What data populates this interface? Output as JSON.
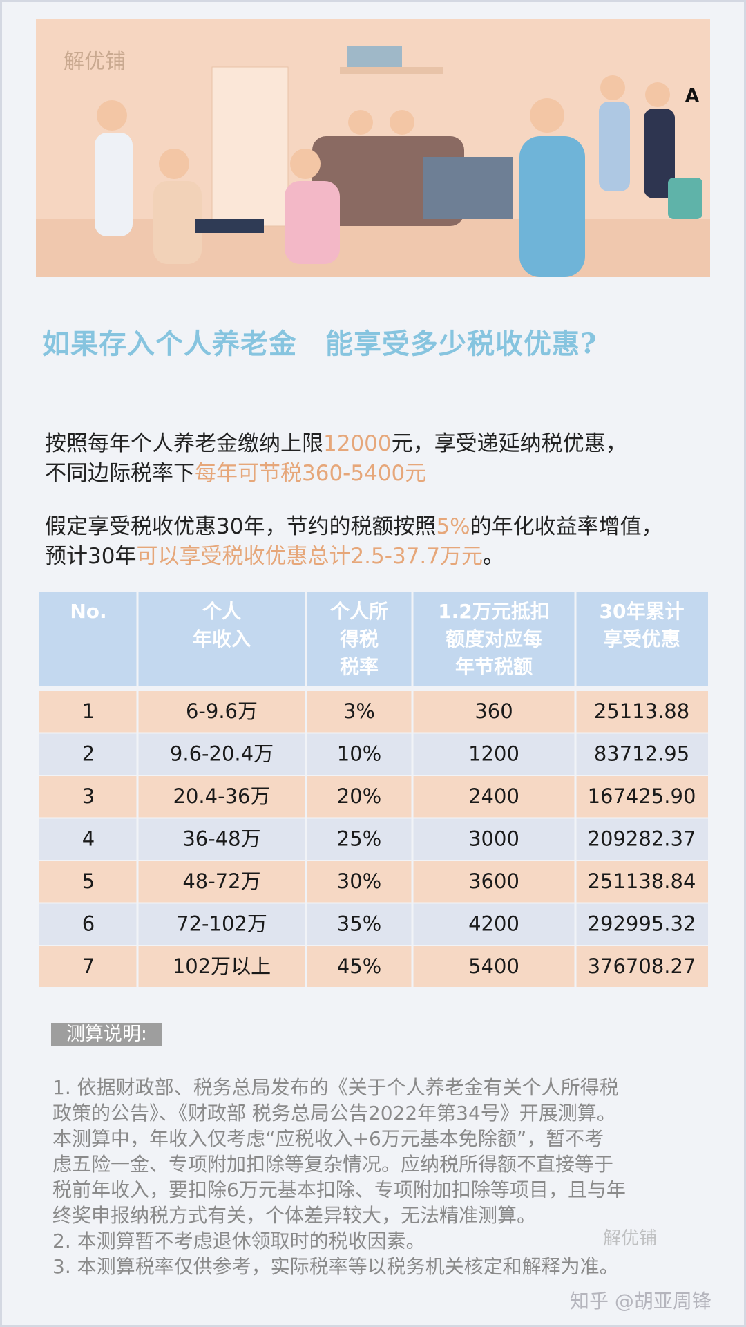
{
  "illustration": {
    "brand": "解优铺",
    "badge": "A"
  },
  "title": "如果存入个人养老金　能享受多少税收优惠?",
  "paragraphs": [
    [
      [
        {
          "text": "按照每年个人养老金缴纳上限",
          "highlight": false
        },
        {
          "text": "12000",
          "highlight": true
        },
        {
          "text": "元，享受递延纳税优惠，",
          "highlight": false
        }
      ],
      [
        {
          "text": "不同边际税率下",
          "highlight": false
        },
        {
          "text": "每年可节税360-5400元",
          "highlight": true
        }
      ]
    ],
    [
      [
        {
          "text": "假定享受税收优惠30年，节约的税额按照",
          "highlight": false
        },
        {
          "text": "5%",
          "highlight": true
        },
        {
          "text": "的年化收益率增值，",
          "highlight": false
        }
      ],
      [
        {
          "text": "预计30年",
          "highlight": false
        },
        {
          "text": "可以享受税收优惠总计2.5-37.7万元",
          "highlight": true
        },
        {
          "text": "。",
          "highlight": false
        }
      ]
    ]
  ],
  "table": {
    "header": [
      [
        "No."
      ],
      [
        "个人",
        "年收入"
      ],
      [
        "个人所",
        "得税",
        "税率"
      ],
      [
        "1.2万元抵扣",
        "额度对应每",
        "年节税额"
      ],
      [
        "30年累计",
        "享受优惠"
      ]
    ],
    "rows": [
      [
        "1",
        "6-9.6万",
        "3%",
        "360",
        "25113.88"
      ],
      [
        "2",
        "9.6-20.4万",
        "10%",
        "1200",
        "83712.95"
      ],
      [
        "3",
        "20.4-36万",
        "20%",
        "2400",
        "167425.90"
      ],
      [
        "4",
        "36-48万",
        "25%",
        "3000",
        "209282.37"
      ],
      [
        "5",
        "48-72万",
        "30%",
        "3600",
        "251138.84"
      ],
      [
        "6",
        "72-102万",
        "35%",
        "4200",
        "292995.32"
      ],
      [
        "7",
        "102万以上",
        "45%",
        "5400",
        "376708.27"
      ]
    ]
  },
  "notes": {
    "heading": "测算说明:",
    "lines": [
      "1. 依据财政部、税务总局发布的《关于个人养老金有关个人所得税",
      "政策的公告》、《财政部 税务总局公告2022年第34号》开展测算。",
      "本测算中，年收入仅考虑“应税收入+6万元基本免除额”，暂不考",
      "虑五险一金、专项附加扣除等复杂情况。应纳税所得额不直接等于",
      "税前年收入，要扣除6万元基本扣除、专项附加扣除等项目，且与年",
      "终奖申报纳税方式有关，个体差异较大，无法精准测算。",
      "2. 本测算暂不考虑退休领取时的税收因素。",
      "3. 本测算税率仅供参考，实际税率等以税务机关核定和解释为准。"
    ]
  },
  "watermarks": {
    "brand": "解优铺",
    "source": "知乎 @胡亚周锋"
  }
}
